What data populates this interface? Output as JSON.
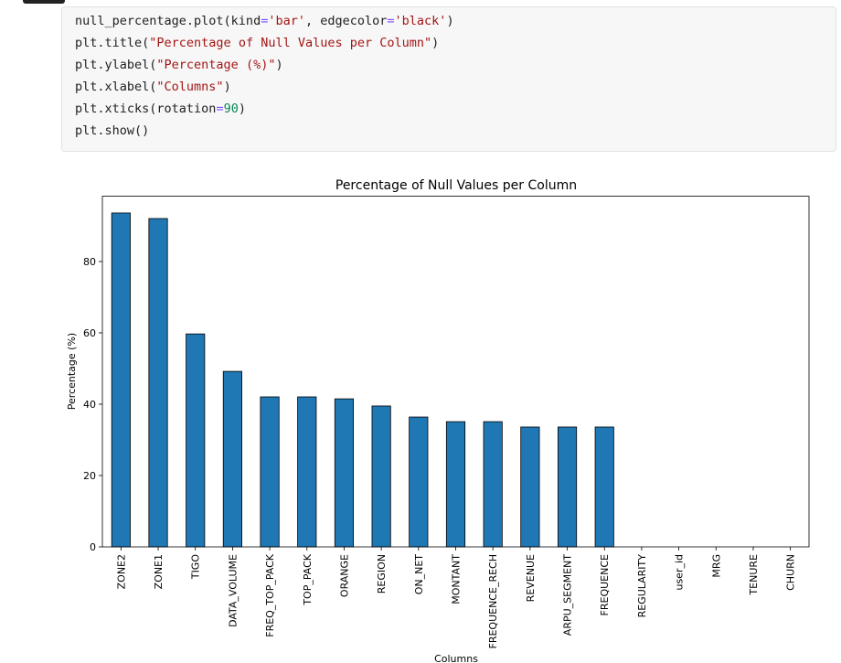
{
  "code": [
    "null_percentage.plot(kind='bar', edgecolor='black')",
    "plt.title(\"Percentage of Null Values per Column\")",
    "plt.ylabel(\"Percentage (%)\")",
    "plt.xlabel(\"Columns\")",
    "plt.xticks(rotation=90)",
    "plt.show()"
  ],
  "chart_data": {
    "type": "bar",
    "title": "Percentage of Null Values per Column",
    "x_label": "Columns",
    "y_label": "Percentage (%)",
    "categories": [
      "ZONE2",
      "ZONE1",
      "TIGO",
      "DATA_VOLUME",
      "FREQ_TOP_PACK",
      "TOP_PACK",
      "ORANGE",
      "REGION",
      "ON_NET",
      "MONTANT",
      "FREQUENCE_RECH",
      "REVENUE",
      "ARPU_SEGMENT",
      "FREQUENCE",
      "REGULARITY",
      "user_id",
      "MRG",
      "TENURE",
      "CHURN"
    ],
    "values": [
      93.6,
      92.05,
      59.7,
      49.2,
      42.05,
      42.05,
      41.5,
      39.5,
      36.4,
      35.1,
      35.1,
      33.6,
      33.6,
      33.6,
      0,
      0,
      0,
      0,
      0
    ],
    "color": "#1f77b4",
    "edgecolor": "#000000",
    "ylim": [
      0,
      98.3
    ],
    "yticks": [
      0,
      20,
      40,
      60,
      80
    ],
    "grid": false
  }
}
